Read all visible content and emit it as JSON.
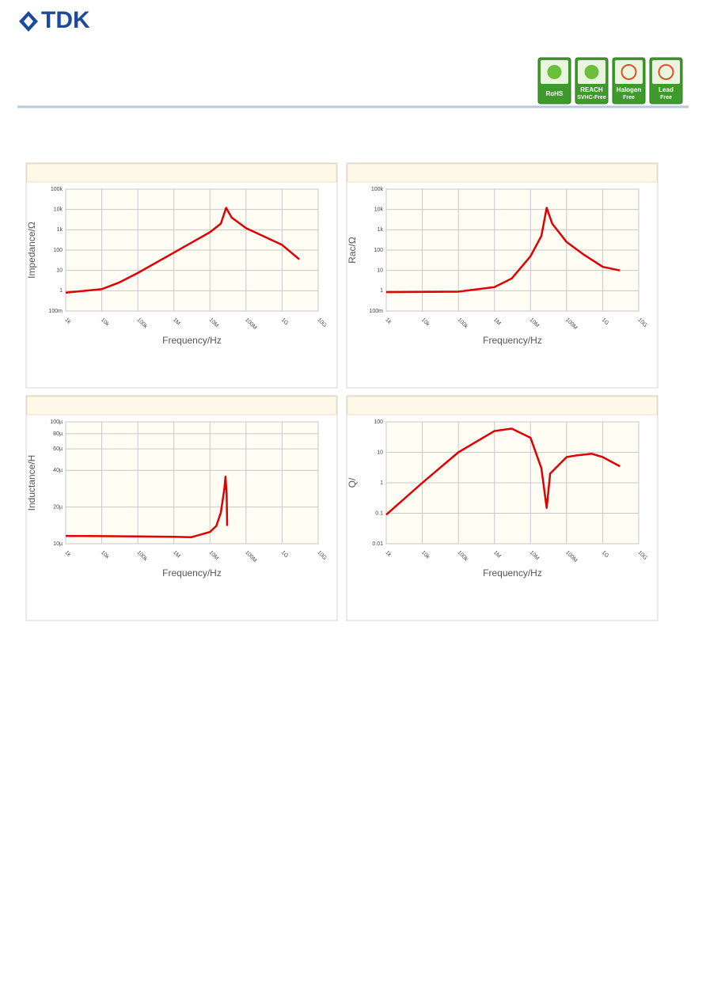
{
  "header": {
    "logo": "TDK",
    "badges": [
      {
        "label": "RoHS"
      },
      {
        "label": "REACH",
        "sub": "SVHC-Free"
      },
      {
        "label": "Halogen",
        "sub": "Free"
      },
      {
        "label": "Lead",
        "sub": "Free"
      }
    ]
  },
  "chart_data": [
    {
      "type": "line",
      "y_label": "Impedance/Ω",
      "x_label": "Frequency/Hz",
      "log_x": true,
      "log_y": true,
      "grid": true,
      "color": "#e00000",
      "x": [
        1000,
        10000,
        30000,
        100000,
        1000000,
        10000000,
        20000000,
        28000000,
        40000000,
        100000000,
        1000000000,
        3000000000
      ],
      "values": [
        0.8,
        1.2,
        2.5,
        7.5,
        75,
        760,
        2000,
        12000,
        4000,
        1200,
        180,
        35
      ],
      "xlim": [
        1000,
        10000000000
      ],
      "ylim": [
        0.1,
        100000
      ],
      "xticks": [
        {
          "value": 1000,
          "label": "1k"
        },
        {
          "value": 10000,
          "label": "10k"
        },
        {
          "value": 100000,
          "label": "100k"
        },
        {
          "value": 1000000,
          "label": "1M"
        },
        {
          "value": 10000000,
          "label": "10M"
        },
        {
          "value": 100000000,
          "label": "100M"
        },
        {
          "value": 1000000000,
          "label": "1G"
        },
        {
          "value": 10000000000,
          "label": "10G"
        }
      ],
      "yticks": [
        {
          "value": 0.1,
          "label": "100m"
        },
        1,
        10,
        100,
        {
          "value": 1000,
          "label": "1k"
        },
        {
          "value": 10000,
          "label": "10k"
        },
        {
          "value": 100000,
          "label": "100k"
        }
      ]
    },
    {
      "type": "line",
      "y_label": "Rac/Ω",
      "x_label": "Frequency/Hz",
      "log_x": true,
      "log_y": true,
      "grid": true,
      "color": "#e00000",
      "x": [
        1000,
        100000,
        1000000,
        3000000,
        10000000,
        20000000,
        28000000,
        40000000,
        100000000,
        300000000,
        1000000000,
        3000000000
      ],
      "values": [
        0.85,
        0.9,
        1.5,
        4,
        50,
        500,
        12000,
        2000,
        250,
        60,
        15,
        10
      ],
      "xlim": [
        1000,
        10000000000
      ],
      "ylim": [
        0.1,
        100000
      ],
      "xticks": [
        {
          "value": 1000,
          "label": "1k"
        },
        {
          "value": 10000,
          "label": "10k"
        },
        {
          "value": 100000,
          "label": "100k"
        },
        {
          "value": 1000000,
          "label": "1M"
        },
        {
          "value": 10000000,
          "label": "10M"
        },
        {
          "value": 100000000,
          "label": "100M"
        },
        {
          "value": 1000000000,
          "label": "1G"
        },
        {
          "value": 10000000000,
          "label": "10G"
        }
      ],
      "yticks": [
        {
          "value": 0.1,
          "label": "100m"
        },
        1,
        10,
        100,
        {
          "value": 1000,
          "label": "1k"
        },
        {
          "value": 10000,
          "label": "10k"
        },
        {
          "value": 100000,
          "label": "100k"
        }
      ]
    },
    {
      "type": "line",
      "y_label": "Inductance/H",
      "x_label": "Frequency/Hz",
      "log_x": true,
      "log_y": true,
      "grid": true,
      "color": "#e00000",
      "x": [
        1000,
        100000,
        1000000,
        3000000,
        10000000,
        15000000,
        20000000,
        25000000,
        27000000,
        29000000,
        30000000
      ],
      "values": [
        1.16e-05,
        1.15e-05,
        1.14e-05,
        1.13e-05,
        1.25e-05,
        1.4e-05,
        1.8e-05,
        2.8e-05,
        3.55e-05,
        2.5e-05,
        1.4e-05
      ],
      "xlim": [
        1000,
        10000000000
      ],
      "ylim": [
        1e-05,
        0.0001
      ],
      "xticks": [
        {
          "value": 1000,
          "label": "1k"
        },
        {
          "value": 10000,
          "label": "10k"
        },
        {
          "value": 100000,
          "label": "100k"
        },
        {
          "value": 1000000,
          "label": "1M"
        },
        {
          "value": 10000000,
          "label": "10M"
        },
        {
          "value": 100000000,
          "label": "100M"
        },
        {
          "value": 1000000000,
          "label": "1G"
        },
        {
          "value": 10000000000,
          "label": "10G"
        }
      ],
      "yticks": [
        {
          "value": 1e-05,
          "label": "10µ"
        },
        {
          "value": 2e-05,
          "label": "20µ"
        },
        {
          "value": 4e-05,
          "label": "40µ"
        },
        {
          "value": 6e-05,
          "label": "60µ"
        },
        {
          "value": 8e-05,
          "label": "80µ"
        },
        {
          "value": 0.0001,
          "label": "100µ"
        }
      ]
    },
    {
      "type": "line",
      "y_label": "Q/",
      "x_label": "Frequency/Hz",
      "log_x": true,
      "log_y": true,
      "grid": true,
      "color": "#e00000",
      "x": [
        1000,
        10000,
        100000,
        1000000,
        3000000,
        10000000,
        20000000,
        28000000,
        35000000,
        100000000,
        200000000,
        500000000,
        1000000000,
        3000000000
      ],
      "values": [
        0.09,
        1,
        10,
        50,
        60,
        30,
        3,
        0.15,
        2,
        7,
        8,
        9,
        7,
        3.5
      ],
      "xlim": [
        1000,
        10000000000
      ],
      "ylim": [
        0.01,
        100
      ],
      "xticks": [
        {
          "value": 1000,
          "label": "1k"
        },
        {
          "value": 10000,
          "label": "10k"
        },
        {
          "value": 100000,
          "label": "100k"
        },
        {
          "value": 1000000,
          "label": "1M"
        },
        {
          "value": 10000000,
          "label": "10M"
        },
        {
          "value": 100000000,
          "label": "100M"
        },
        {
          "value": 1000000000,
          "label": "1G"
        },
        {
          "value": 10000000000,
          "label": "10G"
        }
      ],
      "yticks": [
        0.01,
        0.1,
        1,
        10,
        100
      ]
    }
  ]
}
